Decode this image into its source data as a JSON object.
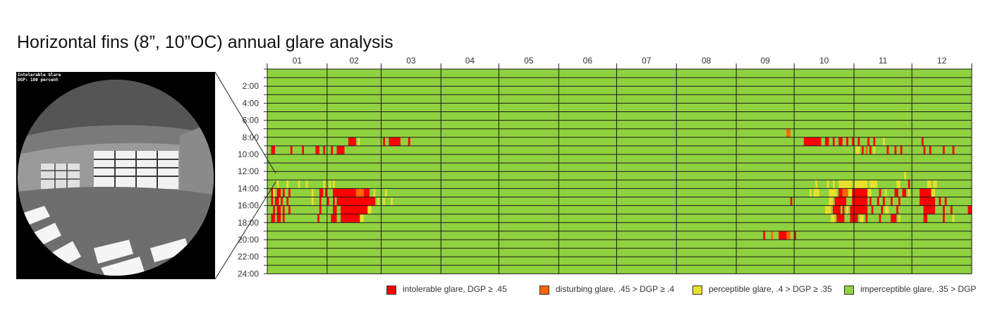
{
  "title": "Horizontal fins (8”, 10”OC) annual glare analysis",
  "fisheye": {
    "line1": "Intolerable Glare",
    "line2": "DGP: 100 percent"
  },
  "colors": {
    "intolerable": "#ff0000",
    "disturbing": "#ff6600",
    "perceptible": "#e8e02a",
    "imperceptible": "#8fd13f"
  },
  "legend": [
    {
      "label": "intolerable glare, DGP ≥ .45",
      "color": "#ff0000"
    },
    {
      "label": "disturbing glare, .45 > DGP ≥ .4",
      "color": "#ff6600"
    },
    {
      "label": "perceptible glare, .4 > DGP ≥ .35",
      "color": "#e8e02a"
    },
    {
      "label": "imperceptible glare, .35 > DGP",
      "color": "#8fd13f"
    }
  ],
  "chart_data": {
    "type": "heatmap",
    "x_categories": [
      "01",
      "02",
      "03",
      "04",
      "05",
      "06",
      "07",
      "08",
      "09",
      "10",
      "11",
      "12"
    ],
    "y_ticks": [
      "2:00",
      "4:00",
      "6:00",
      "8:00",
      "10:00",
      "12:00",
      "14:00",
      "16:00",
      "18:00",
      "20:00",
      "22:00",
      "24:00"
    ],
    "hours": 24,
    "default_level": "imperceptible",
    "events": [
      {
        "hour": 8,
        "day": [
          42,
          46
        ],
        "level": "intolerable"
      },
      {
        "hour": 8,
        "day": [
          47,
          48
        ],
        "level": "perceptible"
      },
      {
        "hour": 8,
        "day": [
          60,
          61
        ],
        "level": "intolerable"
      },
      {
        "hour": 8,
        "day": [
          63,
          69
        ],
        "level": "intolerable"
      },
      {
        "hour": 8,
        "day": [
          73,
          74
        ],
        "level": "intolerable"
      },
      {
        "hour": 9,
        "day": [
          2,
          4
        ],
        "level": "intolerable"
      },
      {
        "hour": 9,
        "day": [
          12,
          13
        ],
        "level": "intolerable"
      },
      {
        "hour": 9,
        "day": [
          18,
          19
        ],
        "level": "intolerable"
      },
      {
        "hour": 9,
        "day": [
          25,
          27
        ],
        "level": "intolerable"
      },
      {
        "hour": 9,
        "day": [
          29,
          30
        ],
        "level": "intolerable"
      },
      {
        "hour": 9,
        "day": [
          33,
          34
        ],
        "level": "intolerable"
      },
      {
        "hour": 9,
        "day": [
          36,
          40
        ],
        "level": "intolerable"
      },
      {
        "hour": 13,
        "day": [
          5,
          6
        ],
        "level": "perceptible"
      },
      {
        "hour": 13,
        "day": [
          10,
          11
        ],
        "level": "perceptible"
      },
      {
        "hour": 13,
        "day": [
          16,
          17
        ],
        "level": "perceptible"
      },
      {
        "hour": 13,
        "day": [
          20,
          21
        ],
        "level": "perceptible"
      },
      {
        "hour": 13,
        "day": [
          29,
          30
        ],
        "level": "perceptible"
      },
      {
        "hour": 13,
        "day": [
          32,
          33
        ],
        "level": "perceptible"
      },
      {
        "hour": 13,
        "day": [
          34,
          35
        ],
        "level": "perceptible"
      },
      {
        "hour": 14,
        "day": [
          2,
          3
        ],
        "level": "intolerable"
      },
      {
        "hour": 14,
        "day": [
          3,
          4
        ],
        "level": "perceptible"
      },
      {
        "hour": 14,
        "day": [
          5,
          7
        ],
        "level": "intolerable"
      },
      {
        "hour": 14,
        "day": [
          8,
          9
        ],
        "level": "intolerable"
      },
      {
        "hour": 14,
        "day": [
          11,
          12
        ],
        "level": "intolerable"
      },
      {
        "hour": 14,
        "day": [
          23,
          24
        ],
        "level": "perceptible"
      },
      {
        "hour": 14,
        "day": [
          27,
          29
        ],
        "level": "intolerable"
      },
      {
        "hour": 14,
        "day": [
          30,
          31
        ],
        "level": "intolerable"
      },
      {
        "hour": 14,
        "day": [
          34,
          46
        ],
        "level": "intolerable"
      },
      {
        "hour": 14,
        "day": [
          46,
          50
        ],
        "level": "disturbing"
      },
      {
        "hour": 14,
        "day": [
          50,
          53
        ],
        "level": "intolerable"
      },
      {
        "hour": 14,
        "day": [
          55,
          56
        ],
        "level": "perceptible"
      },
      {
        "hour": 14,
        "day": [
          61,
          62
        ],
        "level": "perceptible"
      },
      {
        "hour": 15,
        "day": [
          2,
          3
        ],
        "level": "intolerable"
      },
      {
        "hour": 15,
        "day": [
          4,
          6
        ],
        "level": "intolerable"
      },
      {
        "hour": 15,
        "day": [
          7,
          8
        ],
        "level": "intolerable"
      },
      {
        "hour": 15,
        "day": [
          10,
          11
        ],
        "level": "intolerable"
      },
      {
        "hour": 15,
        "day": [
          23,
          24
        ],
        "level": "perceptible"
      },
      {
        "hour": 15,
        "day": [
          27,
          28
        ],
        "level": "intolerable"
      },
      {
        "hour": 15,
        "day": [
          31,
          32
        ],
        "level": "intolerable"
      },
      {
        "hour": 15,
        "day": [
          34,
          35
        ],
        "level": "intolerable"
      },
      {
        "hour": 15,
        "day": [
          36,
          56
        ],
        "level": "intolerable"
      },
      {
        "hour": 15,
        "day": [
          57,
          58
        ],
        "level": "perceptible"
      },
      {
        "hour": 15,
        "day": [
          60,
          61
        ],
        "level": "perceptible"
      },
      {
        "hour": 15,
        "day": [
          64,
          65
        ],
        "level": "perceptible"
      },
      {
        "hour": 16,
        "day": [
          3,
          4
        ],
        "level": "intolerable"
      },
      {
        "hour": 16,
        "day": [
          5,
          7
        ],
        "level": "intolerable"
      },
      {
        "hour": 16,
        "day": [
          8,
          9
        ],
        "level": "intolerable"
      },
      {
        "hour": 16,
        "day": [
          11,
          12
        ],
        "level": "intolerable"
      },
      {
        "hour": 16,
        "day": [
          27,
          28
        ],
        "level": "intolerable"
      },
      {
        "hour": 16,
        "day": [
          34,
          36
        ],
        "level": "intolerable"
      },
      {
        "hour": 16,
        "day": [
          38,
          52
        ],
        "level": "intolerable"
      },
      {
        "hour": 16,
        "day": [
          52,
          54
        ],
        "level": "perceptible"
      },
      {
        "hour": 17,
        "day": [
          2,
          4
        ],
        "level": "intolerable"
      },
      {
        "hour": 17,
        "day": [
          5,
          7
        ],
        "level": "intolerable"
      },
      {
        "hour": 17,
        "day": [
          8,
          9
        ],
        "level": "intolerable"
      },
      {
        "hour": 17,
        "day": [
          26,
          27
        ],
        "level": "intolerable"
      },
      {
        "hour": 17,
        "day": [
          33,
          36
        ],
        "level": "intolerable"
      },
      {
        "hour": 17,
        "day": [
          38,
          48
        ],
        "level": "intolerable"
      },
      {
        "hour": 17,
        "day": [
          48,
          50
        ],
        "level": "perceptible"
      },
      {
        "hour": 7,
        "day": [
          269,
          271
        ],
        "level": "disturbing"
      },
      {
        "hour": 8,
        "day": [
          278,
          287
        ],
        "level": "intolerable"
      },
      {
        "hour": 8,
        "day": [
          289,
          291
        ],
        "level": "intolerable"
      },
      {
        "hour": 8,
        "day": [
          293,
          294
        ],
        "level": "intolerable"
      },
      {
        "hour": 8,
        "day": [
          296,
          298
        ],
        "level": "intolerable"
      },
      {
        "hour": 8,
        "day": [
          300,
          301
        ],
        "level": "intolerable"
      },
      {
        "hour": 8,
        "day": [
          303,
          304
        ],
        "level": "intolerable"
      },
      {
        "hour": 8,
        "day": [
          306,
          307
        ],
        "level": "intolerable"
      },
      {
        "hour": 8,
        "day": [
          311,
          312
        ],
        "level": "intolerable"
      },
      {
        "hour": 8,
        "day": [
          314,
          315
        ],
        "level": "intolerable"
      },
      {
        "hour": 8,
        "day": [
          319,
          320
        ],
        "level": "perceptible"
      },
      {
        "hour": 8,
        "day": [
          339,
          340
        ],
        "level": "intolerable"
      },
      {
        "hour": 9,
        "day": [
          305,
          307
        ],
        "level": "perceptible"
      },
      {
        "hour": 9,
        "day": [
          308,
          309
        ],
        "level": "intolerable"
      },
      {
        "hour": 9,
        "day": [
          310,
          311
        ],
        "level": "disturbing"
      },
      {
        "hour": 9,
        "day": [
          312,
          313
        ],
        "level": "intolerable"
      },
      {
        "hour": 9,
        "day": [
          314,
          315
        ],
        "level": "perceptible"
      },
      {
        "hour": 9,
        "day": [
          321,
          322
        ],
        "level": "intolerable"
      },
      {
        "hour": 9,
        "day": [
          325,
          326
        ],
        "level": "intolerable"
      },
      {
        "hour": 9,
        "day": [
          328,
          329
        ],
        "level": "intolerable"
      },
      {
        "hour": 9,
        "day": [
          340,
          341
        ],
        "level": "intolerable"
      },
      {
        "hour": 9,
        "day": [
          343,
          344
        ],
        "level": "intolerable"
      },
      {
        "hour": 9,
        "day": [
          350,
          351
        ],
        "level": "intolerable"
      },
      {
        "hour": 9,
        "day": [
          355,
          356
        ],
        "level": "intolerable"
      },
      {
        "hour": 12,
        "day": [
          330,
          331
        ],
        "level": "perceptible"
      },
      {
        "hour": 13,
        "day": [
          284,
          285
        ],
        "level": "perceptible"
      },
      {
        "hour": 13,
        "day": [
          290,
          291
        ],
        "level": "perceptible"
      },
      {
        "hour": 13,
        "day": [
          293,
          294
        ],
        "level": "perceptible"
      },
      {
        "hour": 13,
        "day": [
          296,
          303
        ],
        "level": "perceptible"
      },
      {
        "hour": 13,
        "day": [
          304,
          311
        ],
        "level": "perceptible"
      },
      {
        "hour": 13,
        "day": [
          312,
          316
        ],
        "level": "perceptible"
      },
      {
        "hour": 13,
        "day": [
          326,
          328
        ],
        "level": "perceptible"
      },
      {
        "hour": 13,
        "day": [
          332,
          333
        ],
        "level": "intolerable"
      },
      {
        "hour": 13,
        "day": [
          342,
          344
        ],
        "level": "perceptible"
      },
      {
        "hour": 13,
        "day": [
          345,
          347
        ],
        "level": "perceptible"
      },
      {
        "hour": 14,
        "day": [
          281,
          282
        ],
        "level": "perceptible"
      },
      {
        "hour": 14,
        "day": [
          283,
          286
        ],
        "level": "perceptible"
      },
      {
        "hour": 14,
        "day": [
          291,
          295
        ],
        "level": "perceptible"
      },
      {
        "hour": 14,
        "day": [
          296,
          298
        ],
        "level": "intolerable"
      },
      {
        "hour": 14,
        "day": [
          298,
          301
        ],
        "level": "disturbing"
      },
      {
        "hour": 14,
        "day": [
          301,
          303
        ],
        "level": "perceptible"
      },
      {
        "hour": 14,
        "day": [
          303,
          311
        ],
        "level": "intolerable"
      },
      {
        "hour": 14,
        "day": [
          311,
          313
        ],
        "level": "perceptible"
      },
      {
        "hour": 14,
        "day": [
          317,
          318
        ],
        "level": "intolerable"
      },
      {
        "hour": 14,
        "day": [
          320,
          321
        ],
        "level": "perceptible"
      },
      {
        "hour": 14,
        "day": [
          325,
          327
        ],
        "level": "intolerable"
      },
      {
        "hour": 14,
        "day": [
          329,
          331
        ],
        "level": "intolerable"
      },
      {
        "hour": 14,
        "day": [
          332,
          333
        ],
        "level": "perceptible"
      },
      {
        "hour": 14,
        "day": [
          338,
          344
        ],
        "level": "intolerable"
      },
      {
        "hour": 14,
        "day": [
          344,
          346
        ],
        "level": "perceptible"
      },
      {
        "hour": 15,
        "day": [
          271,
          272
        ],
        "level": "intolerable"
      },
      {
        "hour": 15,
        "day": [
          291,
          293
        ],
        "level": "perceptible"
      },
      {
        "hour": 15,
        "day": [
          294,
          300
        ],
        "level": "intolerable"
      },
      {
        "hour": 15,
        "day": [
          303,
          311
        ],
        "level": "intolerable"
      },
      {
        "hour": 15,
        "day": [
          312,
          313
        ],
        "level": "intolerable"
      },
      {
        "hour": 15,
        "day": [
          316,
          317
        ],
        "level": "intolerable"
      },
      {
        "hour": 15,
        "day": [
          319,
          320
        ],
        "level": "intolerable"
      },
      {
        "hour": 15,
        "day": [
          323,
          324
        ],
        "level": "intolerable"
      },
      {
        "hour": 15,
        "day": [
          327,
          328
        ],
        "level": "intolerable"
      },
      {
        "hour": 15,
        "day": [
          338,
          346
        ],
        "level": "intolerable"
      },
      {
        "hour": 15,
        "day": [
          348,
          349
        ],
        "level": "intolerable"
      },
      {
        "hour": 15,
        "day": [
          351,
          352
        ],
        "level": "intolerable"
      },
      {
        "hour": 16,
        "day": [
          289,
          292
        ],
        "level": "perceptible"
      },
      {
        "hour": 16,
        "day": [
          293,
          297
        ],
        "level": "intolerable"
      },
      {
        "hour": 16,
        "day": [
          298,
          299
        ],
        "level": "intolerable"
      },
      {
        "hour": 16,
        "day": [
          300,
          301
        ],
        "level": "perceptible"
      },
      {
        "hour": 16,
        "day": [
          302,
          311
        ],
        "level": "intolerable"
      },
      {
        "hour": 16,
        "day": [
          313,
          314
        ],
        "level": "intolerable"
      },
      {
        "hour": 16,
        "day": [
          318,
          319
        ],
        "level": "intolerable"
      },
      {
        "hour": 16,
        "day": [
          320,
          322
        ],
        "level": "perceptible"
      },
      {
        "hour": 16,
        "day": [
          326,
          327
        ],
        "level": "intolerable"
      },
      {
        "hour": 16,
        "day": [
          340,
          346
        ],
        "level": "intolerable"
      },
      {
        "hour": 16,
        "day": [
          350,
          351
        ],
        "level": "intolerable"
      },
      {
        "hour": 16,
        "day": [
          354,
          355
        ],
        "level": "intolerable"
      },
      {
        "hour": 16,
        "day": [
          363,
          365
        ],
        "level": "intolerable"
      },
      {
        "hour": 17,
        "day": [
          292,
          294
        ],
        "level": "perceptible"
      },
      {
        "hour": 17,
        "day": [
          295,
          299
        ],
        "level": "intolerable"
      },
      {
        "hour": 17,
        "day": [
          302,
          306
        ],
        "level": "intolerable"
      },
      {
        "hour": 17,
        "day": [
          307,
          309
        ],
        "level": "perceptible"
      },
      {
        "hour": 17,
        "day": [
          310,
          311
        ],
        "level": "intolerable"
      },
      {
        "hour": 17,
        "day": [
          317,
          318
        ],
        "level": "intolerable"
      },
      {
        "hour": 17,
        "day": [
          323,
          326
        ],
        "level": "intolerable"
      },
      {
        "hour": 17,
        "day": [
          327,
          328
        ],
        "level": "perceptible"
      },
      {
        "hour": 17,
        "day": [
          340,
          342
        ],
        "level": "intolerable"
      },
      {
        "hour": 17,
        "day": [
          350,
          351
        ],
        "level": "intolerable"
      },
      {
        "hour": 17,
        "day": [
          355,
          356
        ],
        "level": "perceptible"
      },
      {
        "hour": 19,
        "day": [
          257,
          258
        ],
        "level": "intolerable"
      },
      {
        "hour": 19,
        "day": [
          261,
          262
        ],
        "level": "disturbing"
      },
      {
        "hour": 19,
        "day": [
          265,
          269
        ],
        "level": "intolerable"
      },
      {
        "hour": 19,
        "day": [
          269,
          271
        ],
        "level": "disturbing"
      },
      {
        "hour": 19,
        "day": [
          273,
          274
        ],
        "level": "intolerable"
      }
    ]
  }
}
